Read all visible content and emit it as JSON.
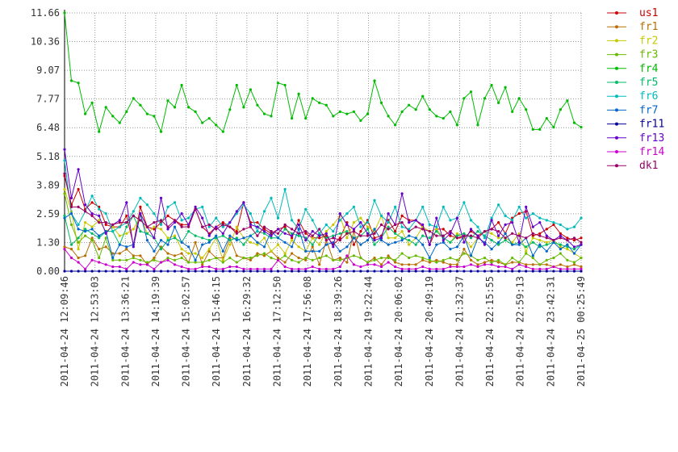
{
  "chart_data": {
    "type": "line",
    "title": "",
    "xlabel": "",
    "ylabel": "",
    "ylim": [
      0,
      11.66
    ],
    "yticks": [
      "0.00",
      "1.30",
      "2.59",
      "3.89",
      "5.18",
      "6.48",
      "7.77",
      "9.07",
      "10.36",
      "11.66"
    ],
    "xticks": [
      "2011-04-24 12:09:46",
      "2011-04-24 12:53:03",
      "2011-04-24 13:36:21",
      "2011-04-24 14:19:39",
      "2011-04-24 15:02:57",
      "2011-04-24 15:46:15",
      "2011-04-24 16:29:32",
      "2011-04-24 17:12:50",
      "2011-04-24 17:56:08",
      "2011-04-24 18:39:26",
      "2011-04-24 19:22:44",
      "2011-04-24 20:06:02",
      "2011-04-24 20:49:19",
      "2011-04-24 21:32:37",
      "2011-04-24 22:15:55",
      "2011-04-24 22:59:13",
      "2011-04-24 23:42:31",
      "2011-04-25 00:25:49"
    ],
    "grid": true,
    "legend_position": "right",
    "series": [
      {
        "name": "us1",
        "color": "#cc0000",
        "values": [
          4.3,
          3.0,
          3.7,
          2.8,
          3.1,
          2.9,
          2.1,
          2.0,
          2.0,
          2.5,
          1.2,
          2.9,
          2.0,
          1.9,
          2.2,
          2.5,
          2.3,
          2.1,
          2.1,
          2.8,
          2.0,
          1.7,
          2.0,
          2.2,
          2.0,
          1.8,
          3.1,
          2.2,
          2.2,
          1.9,
          1.7,
          1.9,
          2.0,
          1.5,
          2.3,
          1.7,
          1.5,
          1.5,
          1.6,
          1.2,
          1.5,
          2.2,
          1.2,
          1.8,
          2.3,
          1.5,
          1.6,
          2.3,
          1.8,
          2.5,
          2.3,
          2.3,
          2.0,
          1.2,
          1.9,
          1.9,
          1.6,
          1.5,
          1.5,
          1.8,
          1.6,
          1.8,
          1.9,
          2.2,
          1.7,
          2.4,
          2.6,
          2.7,
          1.6,
          1.7,
          1.9,
          2.1,
          1.7,
          1.5,
          1.4,
          1.5
        ]
      },
      {
        "name": "fr1",
        "color": "#b86e00",
        "values": [
          1.1,
          1.0,
          0.6,
          0.7,
          1.5,
          1.0,
          1.1,
          0.8,
          0.8,
          1.0,
          0.7,
          0.7,
          0.3,
          0.6,
          1.1,
          0.8,
          0.7,
          0.8,
          0.4,
          1.3,
          0.3,
          0.9,
          0.6,
          0.6,
          1.5,
          0.7,
          0.6,
          0.5,
          0.8,
          0.7,
          0.9,
          0.6,
          0.4,
          0.8,
          0.6,
          0.5,
          1.1,
          0.3,
          1.4,
          0.5,
          0.6,
          0.4,
          1.8,
          0.6,
          0.4,
          0.6,
          0.3,
          0.7,
          0.4,
          0.3,
          0.3,
          0.3,
          0.5,
          0.4,
          0.5,
          0.4,
          0.3,
          0.3,
          1.0,
          0.5,
          0.3,
          0.4,
          0.5,
          0.4,
          0.3,
          0.4,
          0.4,
          0.3,
          0.3,
          0.3,
          0.3,
          0.2,
          0.3,
          0.2,
          0.3,
          0.2
        ]
      },
      {
        "name": "fr2",
        "color": "#c8c800",
        "values": [
          3.7,
          2.7,
          1.0,
          2.2,
          2.0,
          2.3,
          1.8,
          2.0,
          1.6,
          1.7,
          1.9,
          2.5,
          1.7,
          2.0,
          1.9,
          1.5,
          1.6,
          1.0,
          0.8,
          0.8,
          0.6,
          1.0,
          1.5,
          0.5,
          1.2,
          2.0,
          1.5,
          1.3,
          1.2,
          1.5,
          0.9,
          1.2,
          0.8,
          1.4,
          1.1,
          0.9,
          1.5,
          1.2,
          1.8,
          2.1,
          2.5,
          1.5,
          2.2,
          2.4,
          2.0,
          1.8,
          2.5,
          1.5,
          1.5,
          1.8,
          1.2,
          1.5,
          2.0,
          1.8,
          1.9,
          1.5,
          1.3,
          1.7,
          1.5,
          1.1,
          1.5,
          1.8,
          1.7,
          1.5,
          1.5,
          1.3,
          1.7,
          0.9,
          1.5,
          1.4,
          1.3,
          1.4,
          1.1,
          1.0,
          0.8,
          0.6
        ]
      },
      {
        "name": "fr3",
        "color": "#66bb00",
        "values": [
          3.5,
          2.1,
          1.3,
          1.6,
          1.4,
          0.6,
          1.5,
          0.5,
          0.5,
          0.5,
          0.6,
          0.5,
          0.4,
          0.5,
          0.4,
          0.6,
          0.5,
          0.6,
          0.4,
          0.4,
          0.4,
          0.5,
          0.6,
          0.4,
          0.6,
          0.4,
          0.6,
          0.6,
          0.7,
          0.8,
          0.6,
          0.5,
          0.7,
          0.5,
          0.4,
          0.6,
          0.5,
          0.6,
          0.7,
          0.5,
          0.5,
          0.6,
          0.7,
          0.6,
          0.4,
          0.5,
          0.6,
          0.6,
          0.5,
          0.8,
          0.6,
          0.7,
          0.6,
          0.5,
          0.4,
          0.5,
          0.6,
          0.5,
          0.8,
          0.7,
          0.5,
          0.6,
          0.4,
          0.5,
          0.3,
          0.6,
          0.4,
          0.8,
          0.6,
          0.3,
          0.5,
          0.6,
          0.8,
          0.5,
          0.4,
          0.6
        ]
      },
      {
        "name": "fr4",
        "color": "#00bb00",
        "values": [
          11.66,
          8.6,
          8.5,
          7.1,
          7.6,
          6.3,
          7.4,
          7.0,
          6.7,
          7.2,
          7.8,
          7.5,
          7.1,
          7.0,
          6.3,
          7.7,
          7.4,
          8.4,
          7.4,
          7.2,
          6.7,
          6.9,
          6.6,
          6.3,
          7.3,
          8.4,
          7.4,
          8.2,
          7.5,
          7.1,
          7.0,
          8.5,
          8.4,
          6.9,
          8.0,
          6.9,
          7.8,
          7.6,
          7.5,
          7.0,
          7.2,
          7.1,
          7.2,
          6.8,
          7.1,
          8.6,
          7.6,
          7.0,
          6.6,
          7.2,
          7.5,
          7.3,
          7.9,
          7.3,
          7.0,
          6.9,
          7.2,
          6.6,
          7.8,
          8.1,
          6.6,
          7.8,
          8.4,
          7.6,
          8.3,
          7.2,
          7.8,
          7.3,
          6.4,
          6.4,
          6.9,
          6.5,
          7.3,
          7.7,
          6.7,
          6.5
        ]
      },
      {
        "name": "fr5",
        "color": "#00bb66",
        "values": [
          2.5,
          1.2,
          1.5,
          1.9,
          1.7,
          1.5,
          1.8,
          1.8,
          1.2,
          2.0,
          2.5,
          1.8,
          1.7,
          1.5,
          1.0,
          1.4,
          1.5,
          1.3,
          1.8,
          1.6,
          1.5,
          1.4,
          1.5,
          1.6,
          1.4,
          1.5,
          1.2,
          1.6,
          1.8,
          1.7,
          1.5,
          1.5,
          1.9,
          1.7,
          1.6,
          1.5,
          1.2,
          1.7,
          1.5,
          1.6,
          1.7,
          1.8,
          1.5,
          1.6,
          1.9,
          1.2,
          1.5,
          2.0,
          1.7,
          1.5,
          1.4,
          1.2,
          1.6,
          1.5,
          1.8,
          1.5,
          1.3,
          1.6,
          1.7,
          1.5,
          1.8,
          1.6,
          1.4,
          1.2,
          1.4,
          1.2,
          1.3,
          1.1,
          1.3,
          1.1,
          1.2,
          1.3,
          1.2,
          1.1,
          1.0,
          1.2
        ]
      },
      {
        "name": "fr6",
        "color": "#00bbbb",
        "values": [
          5.0,
          2.6,
          2.1,
          2.7,
          3.4,
          2.8,
          2.6,
          1.8,
          2.0,
          2.2,
          2.7,
          3.3,
          3.0,
          2.6,
          2.1,
          2.9,
          3.1,
          2.3,
          2.4,
          2.8,
          2.9,
          2.0,
          2.4,
          2.0,
          2.2,
          2.6,
          3.0,
          2.6,
          1.8,
          2.7,
          3.3,
          2.4,
          3.7,
          2.3,
          1.9,
          2.8,
          2.3,
          1.7,
          2.1,
          1.8,
          2.3,
          2.6,
          2.9,
          2.0,
          2.2,
          3.2,
          2.5,
          2.2,
          2.9,
          2.0,
          1.9,
          2.3,
          2.9,
          2.1,
          2.0,
          2.9,
          2.3,
          2.4,
          3.1,
          2.3,
          2.0,
          1.5,
          2.4,
          3.0,
          2.5,
          2.3,
          2.9,
          2.4,
          2.6,
          2.4,
          2.3,
          2.2,
          2.1,
          1.9,
          2.0,
          2.4
        ]
      },
      {
        "name": "fr7",
        "color": "#0066cc",
        "values": [
          2.4,
          2.6,
          1.9,
          1.8,
          1.9,
          1.6,
          1.8,
          0.6,
          1.2,
          1.1,
          1.2,
          2.6,
          1.4,
          0.9,
          1.4,
          1.2,
          2.0,
          1.3,
          1.1,
          0.5,
          1.2,
          1.3,
          1.6,
          0.9,
          1.6,
          1.4,
          1.5,
          1.6,
          1.3,
          1.1,
          1.8,
          1.5,
          1.3,
          1.1,
          1.9,
          0.9,
          0.9,
          0.9,
          1.2,
          1.3,
          0.9,
          1.1,
          1.5,
          1.2,
          1.4,
          1.9,
          1.4,
          1.2,
          1.3,
          1.4,
          1.6,
          1.5,
          1.2,
          0.6,
          1.2,
          1.3,
          1.0,
          1.1,
          1.6,
          0.7,
          1.5,
          1.3,
          1.0,
          1.3,
          1.7,
          1.2,
          1.2,
          1.5,
          0.7,
          1.2,
          0.9,
          1.3,
          1.0,
          1.2,
          0.8,
          1.2
        ]
      },
      {
        "name": "fr11",
        "color": "#000099",
        "values": [
          0.0,
          0.0,
          0.0,
          0.0,
          0.0,
          0.0,
          0.0,
          0.0,
          0.0,
          0.0,
          0.0,
          0.0,
          0.0,
          0.0,
          0.0,
          0.0,
          0.0,
          0.0,
          0.0,
          0.0,
          0.0,
          0.0,
          0.0,
          0.0,
          0.0,
          0.0,
          0.0,
          0.0,
          0.0,
          0.0,
          0.0,
          0.0,
          0.0,
          0.0,
          0.0,
          0.0,
          0.0,
          0.0,
          0.0,
          0.0,
          0.0,
          0.0,
          0.0,
          0.0,
          0.0,
          0.0,
          0.0,
          0.0,
          0.0,
          0.0,
          0.0,
          0.0,
          0.0,
          0.0,
          0.0,
          0.0,
          0.0,
          0.0,
          0.0,
          0.0,
          0.0,
          0.0,
          0.0,
          0.0,
          0.0,
          0.0,
          0.0,
          0.0,
          0.0,
          0.0,
          0.0,
          0.0,
          0.0,
          0.0,
          0.0,
          0.0
        ]
      },
      {
        "name": "fr13",
        "color": "#6600cc",
        "values": [
          5.5,
          3.3,
          4.6,
          3.0,
          2.6,
          2.5,
          1.7,
          2.1,
          2.3,
          3.1,
          1.1,
          2.6,
          2.0,
          1.5,
          3.3,
          1.9,
          2.2,
          2.6,
          2.1,
          2.9,
          2.4,
          1.6,
          2.0,
          1.7,
          2.2,
          2.7,
          3.1,
          2.1,
          2.0,
          1.8,
          1.6,
          1.9,
          1.7,
          1.6,
          2.1,
          1.4,
          1.8,
          1.6,
          1.7,
          1.1,
          2.6,
          2.1,
          1.9,
          2.2,
          1.7,
          1.4,
          1.5,
          2.6,
          2.1,
          3.5,
          2.2,
          2.3,
          2.1,
          1.2,
          2.4,
          1.4,
          1.7,
          2.4,
          1.3,
          1.9,
          1.6,
          1.2,
          2.3,
          1.6,
          2.1,
          2.2,
          1.3,
          2.9,
          2.0,
          2.2,
          1.6,
          1.4,
          1.6,
          1.4,
          1.1,
          1.2
        ]
      },
      {
        "name": "fr14",
        "color": "#cc00cc",
        "values": [
          1.0,
          0.6,
          0.4,
          0.1,
          0.5,
          0.4,
          0.3,
          0.2,
          0.2,
          0.1,
          0.4,
          0.3,
          0.3,
          0.1,
          0.4,
          0.5,
          0.3,
          0.2,
          0.1,
          0.1,
          0.2,
          0.2,
          0.1,
          0.1,
          0.2,
          0.2,
          0.1,
          0.1,
          0.1,
          0.1,
          0.1,
          0.5,
          0.2,
          0.1,
          0.1,
          0.1,
          0.2,
          0.1,
          0.1,
          0.1,
          0.2,
          0.7,
          0.3,
          0.2,
          0.3,
          0.3,
          0.2,
          0.4,
          0.2,
          0.1,
          0.1,
          0.1,
          0.2,
          0.1,
          0.1,
          0.1,
          0.2,
          0.2,
          0.2,
          0.3,
          0.2,
          0.3,
          0.3,
          0.2,
          0.2,
          0.1,
          0.3,
          0.2,
          0.1,
          0.1,
          0.1,
          0.2,
          0.1,
          0.1,
          0.1,
          0.1
        ]
      },
      {
        "name": "dk1",
        "color": "#990066",
        "values": [
          4.4,
          2.9,
          2.9,
          2.7,
          2.5,
          2.2,
          2.2,
          2.1,
          2.2,
          2.2,
          2.5,
          2.3,
          2.0,
          2.2,
          2.3,
          2.0,
          2.3,
          2.0,
          2.0,
          2.8,
          2.0,
          2.1,
          1.9,
          2.1,
          2.0,
          1.7,
          1.9,
          2.0,
          1.6,
          2.0,
          1.8,
          1.7,
          2.1,
          1.9,
          1.7,
          1.8,
          1.6,
          1.9,
          1.4,
          1.5,
          1.4,
          1.7,
          1.8,
          1.6,
          1.6,
          1.7,
          2.1,
          1.9,
          2.1,
          2.2,
          1.8,
          2.0,
          1.9,
          1.8,
          1.6,
          1.6,
          1.8,
          1.5,
          1.6,
          1.6,
          1.5,
          1.8,
          1.9,
          1.8,
          1.5,
          1.7,
          1.6,
          1.5,
          1.7,
          1.6,
          1.5,
          1.4,
          1.5,
          1.4,
          1.5,
          1.3
        ]
      }
    ]
  }
}
